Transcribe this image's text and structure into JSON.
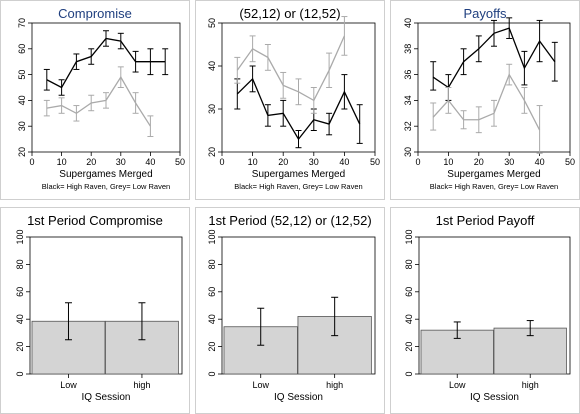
{
  "chart_data": [
    {
      "type": "line",
      "title": "Compromise",
      "title_color": "#1f3f7f",
      "xlabel": "Supergames Merged",
      "note": "Black= High Raven, Grey= Low Raven",
      "xlim": [
        0,
        50
      ],
      "xticks": [
        "0",
        "10",
        "20",
        "30",
        "40",
        "50"
      ],
      "ylim": [
        20,
        70
      ],
      "yticks": [
        "20",
        "30",
        "40",
        "50",
        "60",
        "70"
      ],
      "series": [
        {
          "color": "#000000",
          "x": [
            5,
            10,
            15,
            20,
            25,
            30,
            35,
            40,
            45
          ],
          "y": [
            48,
            45,
            55,
            57,
            64,
            63,
            55,
            55,
            55
          ],
          "lo": [
            44,
            42,
            52,
            54,
            61,
            60,
            51,
            50,
            50
          ],
          "hi": [
            52,
            48,
            58,
            60,
            67,
            66,
            59,
            60,
            60
          ]
        },
        {
          "color": "#aaaaaa",
          "x": [
            5,
            10,
            15,
            20,
            25,
            30,
            35,
            40
          ],
          "y": [
            37,
            38,
            35,
            39,
            40,
            49,
            39,
            30
          ],
          "lo": [
            34,
            35,
            32,
            36,
            37,
            45,
            35,
            26
          ],
          "hi": [
            40,
            41,
            38,
            42,
            43,
            53,
            43,
            34
          ]
        }
      ]
    },
    {
      "type": "line",
      "title": "(52,12) or (12,52)",
      "title_color": "#000000",
      "xlabel": "Supergames Merged",
      "note": "Black= High Raven, Grey= Low Raven",
      "xlim": [
        0,
        50
      ],
      "xticks": [
        "0",
        "10",
        "20",
        "30",
        "40",
        "50"
      ],
      "ylim": [
        20,
        50
      ],
      "yticks": [
        "20",
        "30",
        "40",
        "50"
      ],
      "series": [
        {
          "color": "#000000",
          "x": [
            5,
            10,
            15,
            20,
            25,
            30,
            35,
            40,
            45
          ],
          "y": [
            33.5,
            37,
            28.5,
            29,
            23,
            27.5,
            26.5,
            34,
            26.5
          ],
          "lo": [
            30,
            34,
            26,
            26,
            21,
            25,
            24,
            30,
            22
          ],
          "hi": [
            37,
            40,
            31,
            32,
            25,
            30,
            29,
            38,
            31
          ]
        },
        {
          "color": "#aaaaaa",
          "x": [
            5,
            10,
            15,
            20,
            25,
            30,
            35,
            40
          ],
          "y": [
            39,
            44,
            42,
            35.5,
            34,
            32,
            39,
            47
          ],
          "lo": [
            36,
            41,
            39,
            32.5,
            31,
            29,
            35,
            42.5
          ],
          "hi": [
            42,
            47,
            45,
            38.5,
            37,
            35,
            43,
            51.5
          ]
        }
      ]
    },
    {
      "type": "line",
      "title": "Payoffs",
      "title_color": "#1f3f7f",
      "xlabel": "Supergames Merged",
      "note": "Black= High Raven, Grey= Low Raven",
      "xlim": [
        0,
        50
      ],
      "xticks": [
        "0",
        "10",
        "20",
        "30",
        "40",
        "50"
      ],
      "ylim": [
        30,
        40
      ],
      "yticks": [
        "30",
        "32",
        "34",
        "36",
        "38",
        "40"
      ],
      "series": [
        {
          "color": "#000000",
          "x": [
            5,
            10,
            15,
            20,
            25,
            30,
            35,
            40,
            45
          ],
          "y": [
            35.8,
            35,
            37,
            38,
            39.2,
            39.6,
            36.5,
            38.6,
            37
          ],
          "lo": [
            34.8,
            34,
            36,
            37,
            38.2,
            38.8,
            35.2,
            37,
            35.5
          ],
          "hi": [
            37,
            36,
            38,
            39,
            40.2,
            40.4,
            37.8,
            40.2,
            38.5
          ]
        },
        {
          "color": "#aaaaaa",
          "x": [
            5,
            10,
            15,
            20,
            25,
            30,
            35,
            40
          ],
          "y": [
            32.7,
            34,
            32.5,
            32.5,
            33,
            36,
            34,
            31.7
          ],
          "lo": [
            31.7,
            33,
            31.8,
            31.5,
            32,
            35.2,
            33,
            29.9
          ],
          "hi": [
            33.8,
            35,
            33.2,
            33.5,
            34,
            36.8,
            35,
            33.6
          ]
        }
      ]
    },
    {
      "type": "bar",
      "title": "1st Period Compromise",
      "title_color": "#000000",
      "xlabel": "IQ Session",
      "categories": [
        "Low",
        "high"
      ],
      "values": [
        38.5,
        38.5
      ],
      "lo": [
        25,
        25
      ],
      "hi": [
        52,
        52
      ],
      "ylim": [
        0,
        100
      ],
      "yticks": [
        "0",
        "20",
        "40",
        "60",
        "80",
        "100"
      ]
    },
    {
      "type": "bar",
      "title": "1st Period (52,12) or (12,52)",
      "title_color": "#000000",
      "xlabel": "IQ Session",
      "categories": [
        "Low",
        "high"
      ],
      "values": [
        34.5,
        42
      ],
      "lo": [
        21,
        28
      ],
      "hi": [
        48,
        56
      ],
      "ylim": [
        0,
        100
      ],
      "yticks": [
        "0",
        "20",
        "40",
        "60",
        "80",
        "100"
      ]
    },
    {
      "type": "bar",
      "title": "1st Period Payoff",
      "title_color": "#000000",
      "xlabel": "IQ Session",
      "categories": [
        "Low",
        "high"
      ],
      "values": [
        32,
        33.5
      ],
      "lo": [
        26,
        28
      ],
      "hi": [
        38,
        39
      ],
      "ylim": [
        0,
        100
      ],
      "yticks": [
        "0",
        "20",
        "40",
        "60",
        "80",
        "100"
      ]
    }
  ]
}
